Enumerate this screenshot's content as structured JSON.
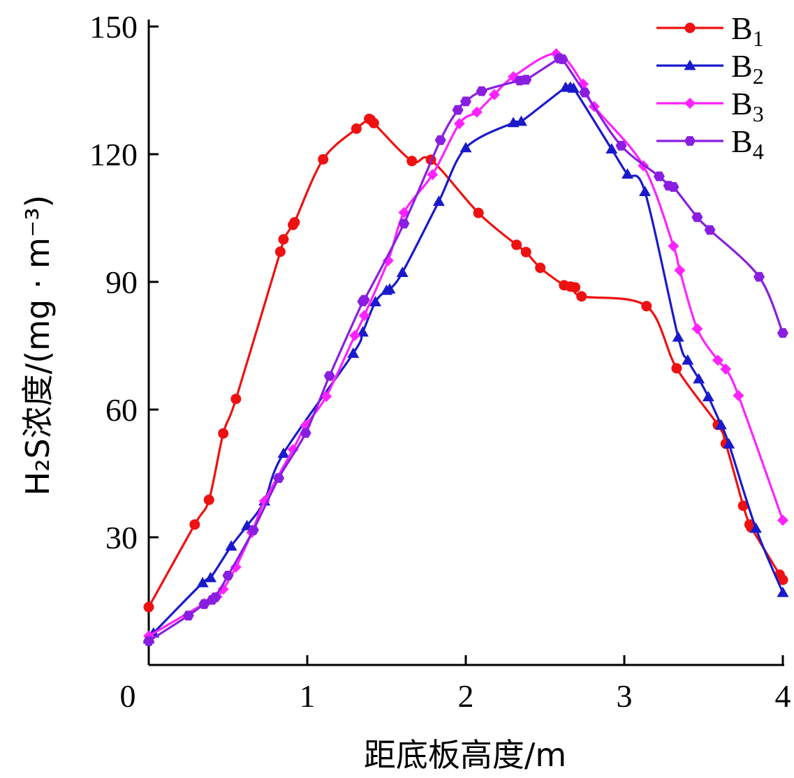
{
  "chart_data": {
    "type": "line",
    "xlabel": "距底板高度/m",
    "ylabel": "H₂S浓度/(mg · m⁻³)",
    "xlim": [
      0,
      4
    ],
    "ylim": [
      0,
      150
    ],
    "xticks": [
      0,
      1,
      2,
      3,
      4
    ],
    "yticks": [
      30,
      60,
      90,
      120,
      150
    ],
    "legend_position": "top-right",
    "series": [
      {
        "name": "B1",
        "base": "B",
        "sub": "1",
        "color": "#ee1111",
        "marker": "circle",
        "points": [
          [
            0,
            13.6
          ],
          [
            0.29,
            33
          ],
          [
            0.38,
            38.8
          ],
          [
            0.47,
            54.4
          ],
          [
            0.55,
            62.5
          ],
          [
            0.83,
            97.1
          ],
          [
            0.85,
            100
          ],
          [
            0.91,
            103.4
          ],
          [
            0.92,
            104
          ],
          [
            1.1,
            118.8
          ],
          [
            1.31,
            126
          ],
          [
            1.39,
            128.3
          ],
          [
            1.4,
            128.1
          ],
          [
            1.42,
            127.3
          ],
          [
            1.66,
            118.4
          ],
          [
            1.78,
            118.7
          ],
          [
            2.08,
            106.2
          ],
          [
            2.32,
            98.7
          ],
          [
            2.38,
            97
          ],
          [
            2.47,
            93.3
          ],
          [
            2.62,
            89.2
          ],
          [
            2.66,
            88.9
          ],
          [
            2.69,
            88.7
          ],
          [
            2.73,
            86.6
          ],
          [
            3.14,
            84.3
          ],
          [
            3.33,
            69.7
          ],
          [
            3.59,
            56.4
          ],
          [
            3.64,
            52
          ],
          [
            3.75,
            37.4
          ],
          [
            3.79,
            33
          ],
          [
            3.8,
            32.3
          ],
          [
            3.98,
            21.2
          ],
          [
            4,
            20
          ]
        ]
      },
      {
        "name": "B2",
        "base": "B",
        "sub": "2",
        "color": "#1a1acc",
        "marker": "triangle",
        "points": [
          [
            0,
            6.1
          ],
          [
            0.03,
            7.5
          ],
          [
            0.34,
            19.3
          ],
          [
            0.39,
            20.5
          ],
          [
            0.52,
            27.9
          ],
          [
            0.62,
            32.7
          ],
          [
            0.73,
            38.5
          ],
          [
            0.85,
            49.7
          ],
          [
            1.29,
            73.2
          ],
          [
            1.35,
            78.2
          ],
          [
            1.43,
            85.3
          ],
          [
            1.5,
            88
          ],
          [
            1.52,
            88.3
          ],
          [
            1.6,
            92.2
          ],
          [
            1.83,
            108.9
          ],
          [
            2.0,
            121.5
          ],
          [
            2.3,
            127.4
          ],
          [
            2.35,
            127.7
          ],
          [
            2.63,
            135.7
          ],
          [
            2.66,
            135.7
          ],
          [
            2.68,
            135.5
          ],
          [
            2.92,
            121.2
          ],
          [
            3.02,
            115.3
          ],
          [
            3.13,
            111.2
          ],
          [
            3.34,
            77
          ],
          [
            3.4,
            71.6
          ],
          [
            3.47,
            67.2
          ],
          [
            3.53,
            63
          ],
          [
            3.61,
            56.4
          ],
          [
            3.66,
            51.9
          ],
          [
            3.83,
            32.1
          ],
          [
            4,
            17
          ]
        ]
      },
      {
        "name": "B3",
        "base": "B",
        "sub": "3",
        "color": "#ff22ff",
        "marker": "diamond",
        "points": [
          [
            0,
            6.8
          ],
          [
            0.35,
            14.4
          ],
          [
            0.43,
            16
          ],
          [
            0.47,
            17.8
          ],
          [
            0.55,
            23
          ],
          [
            0.65,
            31.1
          ],
          [
            0.73,
            38.5
          ],
          [
            0.91,
            50.6
          ],
          [
            0.99,
            56.3
          ],
          [
            1.12,
            63.1
          ],
          [
            1.3,
            77.4
          ],
          [
            1.36,
            82.1
          ],
          [
            1.51,
            95
          ],
          [
            1.61,
            106.3
          ],
          [
            1.79,
            115.2
          ],
          [
            1.96,
            127.2
          ],
          [
            2.07,
            129.9
          ],
          [
            2.18,
            134
          ],
          [
            2.3,
            138.2
          ],
          [
            2.57,
            143.6
          ],
          [
            2.74,
            136.5
          ],
          [
            2.81,
            131.2
          ],
          [
            3.12,
            117.3
          ],
          [
            3.31,
            98.4
          ],
          [
            3.35,
            92.7
          ],
          [
            3.46,
            79
          ],
          [
            3.59,
            71.6
          ],
          [
            3.64,
            69.5
          ],
          [
            3.72,
            63.3
          ],
          [
            4,
            34
          ]
        ]
      },
      {
        "name": "B4",
        "base": "B",
        "sub": "4",
        "color": "#8a1ee0",
        "marker": "hexagon",
        "points": [
          [
            0,
            5.6
          ],
          [
            0.25,
            11.6
          ],
          [
            0.35,
            14.3
          ],
          [
            0.4,
            15.3
          ],
          [
            0.42,
            15.9
          ],
          [
            0.5,
            21
          ],
          [
            0.66,
            31.7
          ],
          [
            0.82,
            43.9
          ],
          [
            0.99,
            54.5
          ],
          [
            1.14,
            67.9
          ],
          [
            1.35,
            85.4
          ],
          [
            1.36,
            85.8
          ],
          [
            1.61,
            103.7
          ],
          [
            1.84,
            123.3
          ],
          [
            1.95,
            130.4
          ],
          [
            2.0,
            132.4
          ],
          [
            2.1,
            134.8
          ],
          [
            2.34,
            137.3
          ],
          [
            2.38,
            137.5
          ],
          [
            2.59,
            142.5
          ],
          [
            2.61,
            142.3
          ],
          [
            2.75,
            134.5
          ],
          [
            2.98,
            122
          ],
          [
            3.22,
            114.8
          ],
          [
            3.28,
            112.6
          ],
          [
            3.31,
            112.3
          ],
          [
            3.46,
            105.2
          ],
          [
            3.54,
            102.2
          ],
          [
            3.85,
            91.2
          ],
          [
            4,
            78
          ]
        ]
      }
    ]
  }
}
